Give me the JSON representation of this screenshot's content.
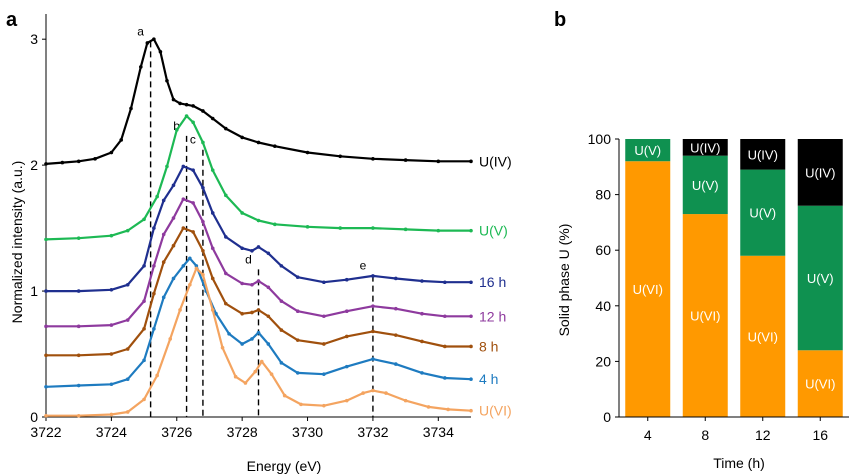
{
  "panel_a": {
    "letter": "a",
    "xlabel": "Energy (eV)",
    "ylabel": "Normalized intensity (a.u.)",
    "xticks": [
      "3722",
      "3724",
      "3726",
      "3728",
      "3730",
      "3732",
      "3734"
    ],
    "yticks": [
      "0",
      "1",
      "2",
      "3"
    ]
  },
  "panel_b": {
    "letter": "b",
    "xlabel": "Time (h)",
    "ylabel": "Solid phase U (%)",
    "xticks": [
      "4",
      "8",
      "12",
      "16"
    ],
    "yticks": [
      "0",
      "20",
      "40",
      "60",
      "80",
      "100"
    ]
  },
  "chart_data": [
    {
      "type": "line",
      "xlabel": "Energy (eV)",
      "ylabel": "Normalized intensity (a.u.)",
      "xlim": [
        3722,
        3735
      ],
      "ylim": [
        0,
        3.2
      ],
      "grid": false,
      "peak_lines": [
        {
          "label": "a",
          "x": 3725.2,
          "label_y": 3.03
        },
        {
          "label": "b",
          "x": 3726.3,
          "label_y": 2.28
        },
        {
          "label": "c",
          "x": 3726.8,
          "label_y": 2.17
        },
        {
          "label": "d",
          "x": 3728.5,
          "label_y": 1.22
        },
        {
          "label": "e",
          "x": 3732.0,
          "label_y": 1.17
        }
      ],
      "series": [
        {
          "name": "U(IV)",
          "color": "#000000",
          "x": [
            3722.0,
            3722.5,
            3723.0,
            3723.5,
            3724.0,
            3724.3,
            3724.6,
            3724.9,
            3725.1,
            3725.3,
            3725.5,
            3725.7,
            3725.9,
            3726.1,
            3726.3,
            3726.5,
            3726.8,
            3727.1,
            3727.5,
            3728.0,
            3728.5,
            3729.0,
            3730.0,
            3731.0,
            3732.0,
            3733.0,
            3734.0,
            3735.0
          ],
          "y": [
            2.01,
            2.02,
            2.03,
            2.05,
            2.1,
            2.2,
            2.45,
            2.78,
            2.97,
            3.0,
            2.9,
            2.67,
            2.52,
            2.49,
            2.48,
            2.47,
            2.43,
            2.37,
            2.29,
            2.22,
            2.18,
            2.15,
            2.1,
            2.07,
            2.05,
            2.04,
            2.03,
            2.03
          ]
        },
        {
          "name": "U(V)",
          "color": "#1db954",
          "x": [
            3722.0,
            3723.0,
            3724.0,
            3724.5,
            3725.0,
            3725.4,
            3725.7,
            3726.0,
            3726.3,
            3726.5,
            3726.8,
            3727.1,
            3727.5,
            3728.0,
            3728.5,
            3729.0,
            3730.0,
            3731.0,
            3732.0,
            3733.0,
            3734.0,
            3735.0
          ],
          "y": [
            1.41,
            1.42,
            1.44,
            1.48,
            1.57,
            1.75,
            1.99,
            2.28,
            2.39,
            2.34,
            2.18,
            1.96,
            1.76,
            1.62,
            1.56,
            1.53,
            1.51,
            1.5,
            1.5,
            1.49,
            1.48,
            1.48
          ]
        },
        {
          "name": "16 h",
          "color": "#1f2f8f",
          "x": [
            3722.0,
            3723.0,
            3724.0,
            3724.5,
            3725.0,
            3725.3,
            3725.6,
            3725.9,
            3726.2,
            3726.5,
            3726.8,
            3727.1,
            3727.5,
            3728.0,
            3728.3,
            3728.5,
            3728.8,
            3729.2,
            3729.7,
            3730.5,
            3731.2,
            3732.0,
            3732.7,
            3733.5,
            3734.2,
            3735.0
          ],
          "y": [
            1.0,
            1.0,
            1.01,
            1.05,
            1.2,
            1.5,
            1.72,
            1.84,
            1.99,
            1.96,
            1.82,
            1.62,
            1.43,
            1.34,
            1.32,
            1.35,
            1.3,
            1.2,
            1.11,
            1.07,
            1.09,
            1.12,
            1.1,
            1.08,
            1.07,
            1.07
          ]
        },
        {
          "name": "12 h",
          "color": "#8e3a9e",
          "x": [
            3722.0,
            3723.0,
            3724.0,
            3724.5,
            3725.0,
            3725.3,
            3725.6,
            3725.9,
            3726.2,
            3726.5,
            3726.8,
            3727.1,
            3727.5,
            3728.0,
            3728.3,
            3728.5,
            3728.8,
            3729.2,
            3729.7,
            3730.5,
            3731.2,
            3732.0,
            3732.7,
            3733.5,
            3734.2,
            3735.0
          ],
          "y": [
            0.72,
            0.72,
            0.73,
            0.77,
            0.92,
            1.2,
            1.45,
            1.58,
            1.73,
            1.7,
            1.55,
            1.34,
            1.14,
            1.06,
            1.05,
            1.08,
            1.03,
            0.92,
            0.84,
            0.8,
            0.84,
            0.88,
            0.86,
            0.82,
            0.8,
            0.8
          ]
        },
        {
          "name": "8 h",
          "color": "#a0500d",
          "x": [
            3722.0,
            3723.0,
            3724.0,
            3724.5,
            3725.0,
            3725.3,
            3725.6,
            3725.9,
            3726.2,
            3726.5,
            3726.8,
            3727.1,
            3727.5,
            3728.0,
            3728.3,
            3728.5,
            3728.8,
            3729.2,
            3729.7,
            3730.5,
            3731.2,
            3732.0,
            3732.7,
            3733.5,
            3734.2,
            3735.0
          ],
          "y": [
            0.49,
            0.49,
            0.5,
            0.54,
            0.7,
            0.98,
            1.23,
            1.36,
            1.5,
            1.47,
            1.32,
            1.1,
            0.9,
            0.82,
            0.83,
            0.85,
            0.8,
            0.69,
            0.61,
            0.58,
            0.64,
            0.68,
            0.65,
            0.6,
            0.56,
            0.56
          ]
        },
        {
          "name": "4 h",
          "color": "#1e7bc0",
          "x": [
            3722.0,
            3723.0,
            3724.0,
            3724.5,
            3725.0,
            3725.3,
            3725.6,
            3725.9,
            3726.2,
            3726.4,
            3726.6,
            3726.9,
            3727.2,
            3727.6,
            3728.0,
            3728.3,
            3728.5,
            3728.8,
            3729.2,
            3729.7,
            3730.5,
            3731.2,
            3732.0,
            3732.7,
            3733.5,
            3734.2,
            3735.0
          ],
          "y": [
            0.24,
            0.25,
            0.26,
            0.3,
            0.45,
            0.7,
            0.95,
            1.1,
            1.2,
            1.26,
            1.2,
            1.0,
            0.82,
            0.66,
            0.58,
            0.62,
            0.67,
            0.58,
            0.43,
            0.35,
            0.34,
            0.4,
            0.46,
            0.42,
            0.35,
            0.31,
            0.3
          ]
        },
        {
          "name": "U(VI)",
          "color": "#f4a460",
          "x": [
            3722.0,
            3723.0,
            3724.0,
            3724.5,
            3725.0,
            3725.4,
            3725.8,
            3726.1,
            3726.4,
            3726.6,
            3726.8,
            3727.1,
            3727.4,
            3727.8,
            3728.1,
            3728.4,
            3728.6,
            3728.9,
            3729.3,
            3729.8,
            3730.5,
            3731.2,
            3731.7,
            3732.0,
            3732.4,
            3733.0,
            3733.7,
            3734.3,
            3735.0
          ],
          "y": [
            0.01,
            0.01,
            0.02,
            0.04,
            0.14,
            0.33,
            0.62,
            0.85,
            1.05,
            1.18,
            1.13,
            0.85,
            0.55,
            0.32,
            0.27,
            0.36,
            0.44,
            0.34,
            0.17,
            0.1,
            0.09,
            0.13,
            0.19,
            0.21,
            0.19,
            0.13,
            0.08,
            0.06,
            0.05
          ]
        }
      ]
    },
    {
      "type": "bar",
      "stacked": true,
      "xlabel": "Time (h)",
      "ylabel": "Solid phase U (%)",
      "ylim": [
        0,
        100
      ],
      "categories": [
        "4",
        "8",
        "12",
        "16"
      ],
      "series": [
        {
          "name": "U(VI)",
          "color": "#ff9900",
          "label_color": "#ffffff",
          "values": [
            92,
            73,
            58,
            24
          ]
        },
        {
          "name": "U(V)",
          "color": "#0f9150",
          "label_color": "#ffffff",
          "values": [
            8,
            21,
            31,
            52
          ]
        },
        {
          "name": "U(IV)",
          "color": "#000000",
          "label_color": "#ffffff",
          "values": [
            0,
            6,
            11,
            24
          ]
        }
      ]
    }
  ]
}
